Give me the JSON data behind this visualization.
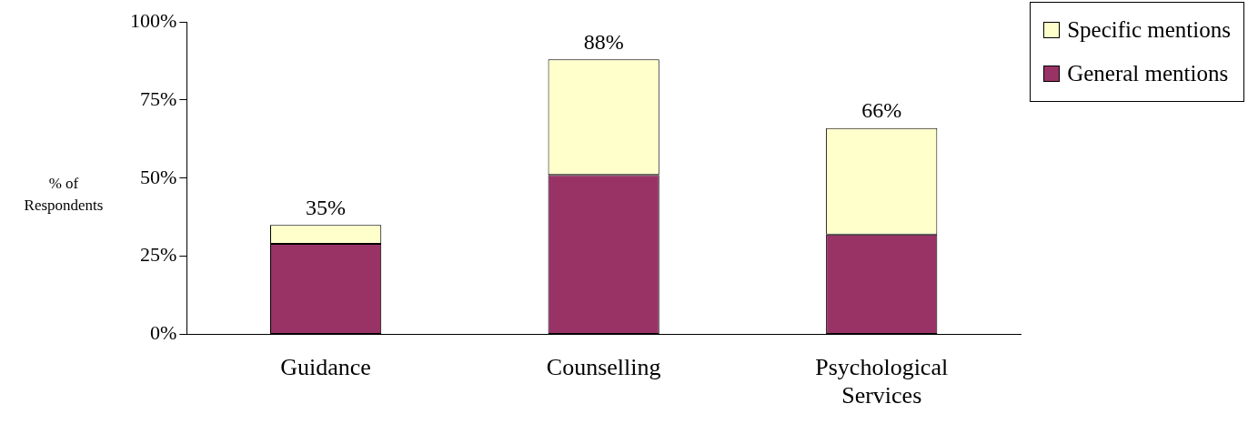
{
  "chart_data": {
    "type": "bar",
    "stacked": true,
    "ylabel": "% of Respondents",
    "categories": [
      "Guidance",
      "Counselling",
      "Psychological Services"
    ],
    "series": [
      {
        "name": "General mentions",
        "color": "#993366",
        "values": [
          29,
          51,
          32
        ]
      },
      {
        "name": "Specific mentions",
        "color": "#ffffcc",
        "values": [
          6,
          37,
          34
        ]
      }
    ],
    "totals": [
      "35%",
      "88%",
      "66%"
    ],
    "ylim": [
      0,
      100
    ],
    "yticks": [
      {
        "value": 0,
        "label": "0%"
      },
      {
        "value": 25,
        "label": "25%"
      },
      {
        "value": 50,
        "label": "50%"
      },
      {
        "value": 75,
        "label": "75%"
      },
      {
        "value": 100,
        "label": "100%"
      }
    ],
    "grid": false,
    "legend": "top right"
  }
}
